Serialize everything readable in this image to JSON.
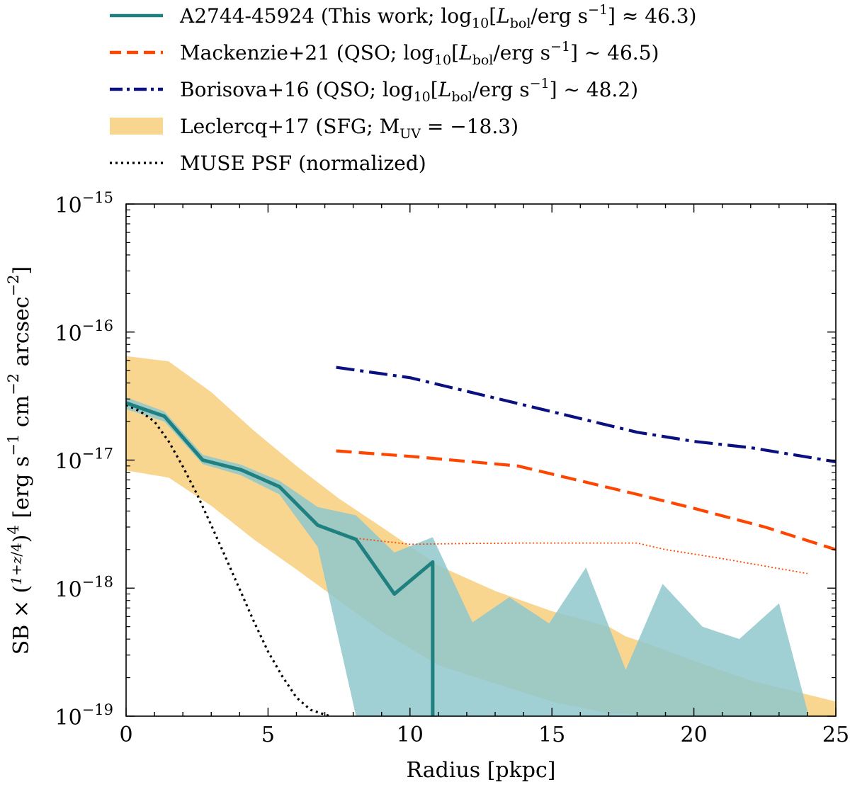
{
  "chart_data": {
    "type": "line",
    "xlabel": "Radius [pkpc]",
    "ylabel": {
      "prefix": "SB ×",
      "frac_num": "1+z",
      "frac_den": "4",
      "power": "4",
      "units_a": "[erg s",
      "units_exp1": "−1",
      "units_b": " cm",
      "units_exp2": "−2",
      "units_c": " arcsec",
      "units_exp3": "−2",
      "units_d": "]"
    },
    "xlim": [
      0,
      25
    ],
    "ylim": [
      1e-19,
      1e-15
    ],
    "yscale": "log",
    "xticks": [
      0,
      5,
      10,
      15,
      20,
      25
    ],
    "yticks": [
      {
        "value": 1e-15,
        "base": "10",
        "exp": "−15"
      },
      {
        "value": 1e-16,
        "base": "10",
        "exp": "−16"
      },
      {
        "value": 1e-17,
        "base": "10",
        "exp": "−17"
      },
      {
        "value": 1e-18,
        "base": "10",
        "exp": "−18"
      },
      {
        "value": 1e-19,
        "base": "10",
        "exp": "−19"
      }
    ],
    "colors": {
      "a2744": "#1f8080",
      "a2744_band": "#8fc7cc",
      "mackenzie": "#ff4500",
      "borisova": "#0a1080",
      "leclercq": "#f6c86a",
      "psf": "#000000"
    },
    "legend": [
      {
        "key": "a2744",
        "style": "solid",
        "label_main": "A2744-45924 (This work; log",
        "sub1": "10",
        "mid1": "[",
        "it": "L",
        "sub2": "bol",
        "mid2": "/erg s",
        "sup": "−1",
        "tail": "] ≈ 46.3)"
      },
      {
        "key": "mackenzie",
        "style": "dashed",
        "label_main": "Mackenzie+21 (QSO; log",
        "sub1": "10",
        "mid1": "[",
        "it": "L",
        "sub2": "bol",
        "mid2": "/erg s",
        "sup": "−1",
        "tail": "] ∼ 46.5)"
      },
      {
        "key": "borisova",
        "style": "dashdot",
        "label_main": "Borisova+16 (QSO; log",
        "sub1": "10",
        "mid1": "[",
        "it": "L",
        "sub2": "bol",
        "mid2": "/erg s",
        "sup": "−1",
        "tail": "] ∼ 48.2)"
      },
      {
        "key": "leclercq",
        "style": "patch",
        "label_main": "Leclercq+17 (SFG; M",
        "sub1": "UV",
        "mid1": " = −18.3)",
        "it": "",
        "sub2": "",
        "mid2": "",
        "sup": "",
        "tail": ""
      },
      {
        "key": "psf",
        "style": "dotted",
        "label_main": "MUSE PSF (normalized)",
        "sub1": "",
        "mid1": "",
        "it": "",
        "sub2": "",
        "mid2": "",
        "sup": "",
        "tail": ""
      }
    ],
    "series": [
      {
        "name": "A2744-45924 (This work)",
        "key": "a2744",
        "x": [
          0,
          0.4,
          1.35,
          2.7,
          4.05,
          5.4,
          6.75,
          8.1,
          9.45,
          10.8,
          10.8
        ],
        "y": [
          2.8e-17,
          2.6e-17,
          2.2e-17,
          1e-17,
          8.4e-18,
          6.2e-18,
          3.1e-18,
          2.4e-18,
          9e-19,
          1.6e-18,
          1e-19
        ]
      },
      {
        "name": "A2744-45924 uncertainty band",
        "key": "a2744_band",
        "x": [
          0,
          1.35,
          2.7,
          4.05,
          5.4,
          6.75,
          8.1,
          9.45,
          10.8,
          12.2,
          13.5,
          14.9,
          16.2,
          17.6,
          18.9,
          20.3,
          21.6,
          23.0,
          24.0
        ],
        "upper": [
          3.1e-17,
          2.4e-17,
          1.1e-17,
          9.2e-18,
          6.9e-18,
          4.3e-18,
          3.7e-18,
          1.9e-18,
          2.5e-18,
          5.4e-19,
          8.5e-19,
          5.3e-19,
          1.45e-18,
          2.3e-19,
          1.08e-18,
          5e-19,
          4e-19,
          7.6e-19,
          1.1e-19
        ],
        "lower": [
          2.5e-17,
          2e-17,
          9.3e-18,
          7.6e-18,
          5.4e-18,
          2.1e-18,
          1e-19,
          1e-19,
          1e-19,
          1e-19,
          1e-19,
          1e-19,
          1e-19,
          1e-19,
          1e-19,
          1e-19,
          1e-19,
          1e-19,
          1e-19
        ]
      },
      {
        "name": "Mackenzie+21 (QSO)",
        "key": "mackenzie",
        "x": [
          7.4,
          10,
          13.8,
          18,
          20,
          22.5,
          25
        ],
        "y": [
          1.18e-17,
          1.07e-17,
          9e-18,
          5.4e-18,
          4.2e-18,
          3e-18,
          2e-18
        ]
      },
      {
        "name": "Mackenzie+21 (PSF-like thin dotted)",
        "key": "mackenzie_thin",
        "x": [
          8.1,
          10,
          12,
          14,
          16,
          18,
          19,
          21,
          24
        ],
        "y": [
          2.45e-18,
          2.2e-18,
          2.23e-18,
          2.25e-18,
          2.25e-18,
          2.25e-18,
          2e-18,
          1.7e-18,
          1.3e-18
        ]
      },
      {
        "name": "Borisova+16 (QSO)",
        "key": "borisova",
        "x": [
          7.4,
          10,
          14,
          18,
          20,
          22,
          25
        ],
        "y": [
          5.3e-17,
          4.4e-17,
          2.7e-17,
          1.65e-17,
          1.4e-17,
          1.25e-17,
          9.7e-18
        ]
      },
      {
        "name": "Leclercq+17 (SFG)",
        "key": "leclercq",
        "x": [
          0,
          1.5,
          3,
          4.5,
          6,
          7.5,
          9,
          11,
          13,
          15,
          17,
          17.6,
          18.5,
          20,
          22,
          25
        ],
        "upper": [
          6.5e-17,
          5.9e-17,
          3.4e-17,
          1.7e-17,
          9e-18,
          5e-18,
          3e-18,
          1.5e-18,
          9.5e-19,
          6.6e-19,
          5e-19,
          4.2e-19,
          3.6e-19,
          2.7e-19,
          1.9e-19,
          1.3e-19
        ],
        "lower": [
          8.3e-18,
          7.3e-18,
          4.4e-18,
          2.4e-18,
          1.4e-18,
          8e-19,
          4.6e-19,
          2.5e-19,
          1.8e-19,
          1.3e-19,
          1.05e-19,
          1.05e-19,
          1e-19,
          1e-19,
          1e-19,
          1e-19
        ]
      },
      {
        "name": "MUSE PSF (normalized)",
        "key": "psf",
        "x": [
          0,
          0.5,
          1.0,
          1.5,
          2.0,
          2.5,
          3.0,
          3.5,
          4.0,
          4.5,
          5.0,
          5.5,
          6.0,
          6.5,
          7.0,
          7.2
        ],
        "y": [
          2.7e-17,
          2.4e-17,
          2e-17,
          1.4e-17,
          8.9e-18,
          5.4e-18,
          3.1e-18,
          1.75e-18,
          9.8e-19,
          5.5e-19,
          3.2e-19,
          2.05e-19,
          1.4e-19,
          1.12e-19,
          1.03e-19,
          1e-19
        ]
      }
    ]
  }
}
